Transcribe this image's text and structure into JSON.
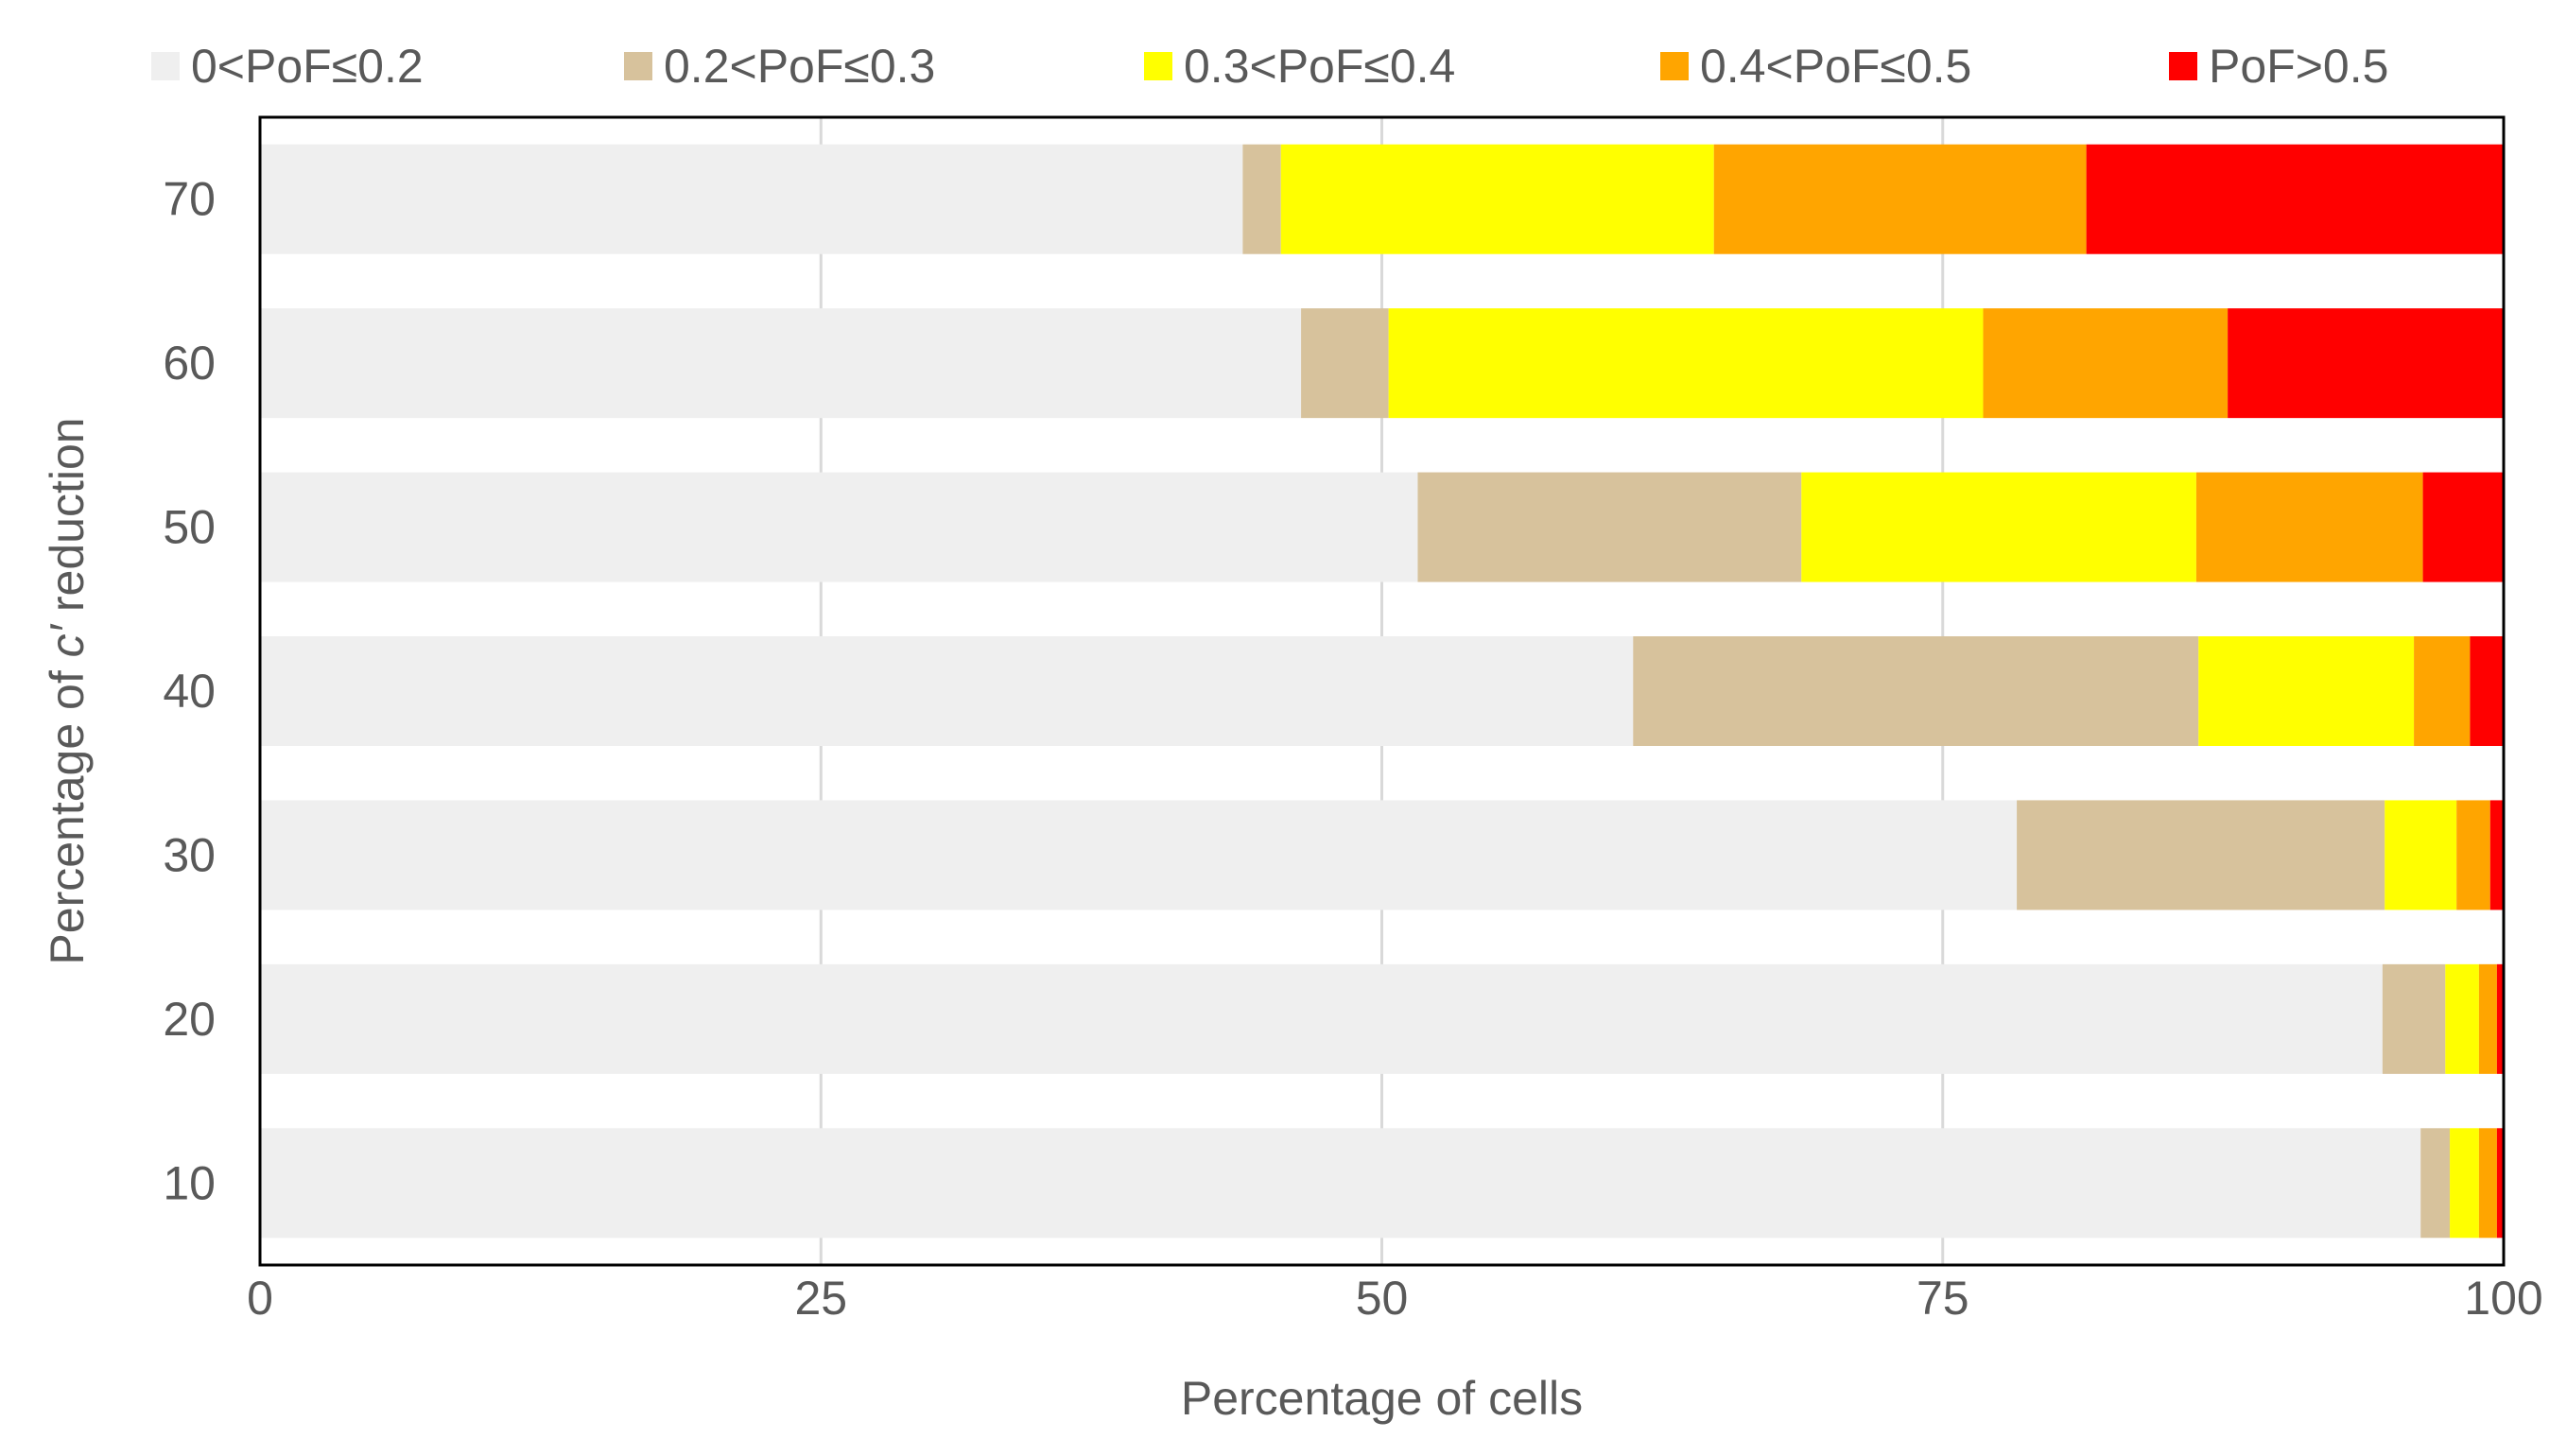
{
  "chart_data": {
    "type": "bar",
    "orientation": "horizontal",
    "stacked": true,
    "title": "",
    "xlabel": "Percentage  of cells",
    "ylabel_prefix": "Percentage  of ",
    "ylabel_italic": "c′",
    "ylabel_suffix": " reduction",
    "xlim": [
      0,
      100
    ],
    "xticks": [
      0,
      25,
      50,
      75,
      100
    ],
    "categories": [
      "10",
      "20",
      "30",
      "40",
      "50",
      "60",
      "70"
    ],
    "series": [
      {
        "name": "0<PoF≤0.2",
        "color": "#efefef",
        "values": [
          96.3,
          94.6,
          78.3,
          61.2,
          51.6,
          46.4,
          43.8
        ]
      },
      {
        "name": "0.2<PoF≤0.3",
        "color": "#d7c29c",
        "values": [
          1.3,
          2.8,
          16.4,
          25.2,
          17.1,
          3.9,
          1.7
        ]
      },
      {
        "name": "0.3<PoF≤0.4",
        "color": "#ffff00",
        "values": [
          1.3,
          1.5,
          3.2,
          9.6,
          17.6,
          26.5,
          19.3
        ]
      },
      {
        "name": "0.4<PoF≤0.5",
        "color": "#ffa500",
        "values": [
          0.8,
          0.8,
          1.5,
          2.5,
          10.1,
          10.9,
          16.6
        ]
      },
      {
        "name": "PoF>0.5",
        "color": "#ff0000",
        "values": [
          0.3,
          0.3,
          0.6,
          1.5,
          3.6,
          12.3,
          18.6
        ]
      }
    ],
    "grid": "vertical",
    "legend": "top"
  }
}
